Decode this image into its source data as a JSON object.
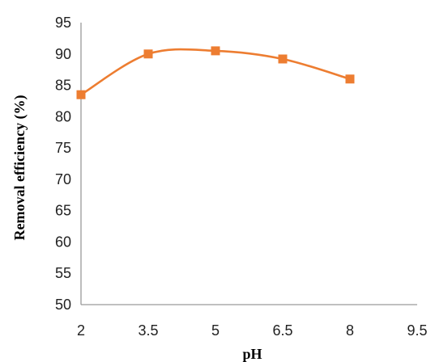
{
  "chart_data": {
    "type": "line",
    "title": "",
    "xlabel": "pH",
    "ylabel": "Removal efficiency (%)",
    "x": [
      2,
      3.5,
      5,
      6.5,
      8
    ],
    "series": [
      {
        "values": [
          83.5,
          90,
          90.5,
          89.2,
          86
        ]
      }
    ],
    "xlim": [
      2,
      9.5
    ],
    "ylim": [
      50,
      95
    ],
    "x_ticks": [
      "2",
      "3.5",
      "5",
      "6.5",
      "8",
      "9.5"
    ],
    "y_ticks": [
      "50",
      "55",
      "60",
      "65",
      "70",
      "75",
      "80",
      "85",
      "90",
      "95"
    ],
    "grid": false,
    "legend": "none",
    "line_style": "smoothed",
    "marker": "square",
    "colors": {
      "series": "#ED7D31",
      "axis": "#9a9a9a",
      "text": "#222222"
    }
  }
}
